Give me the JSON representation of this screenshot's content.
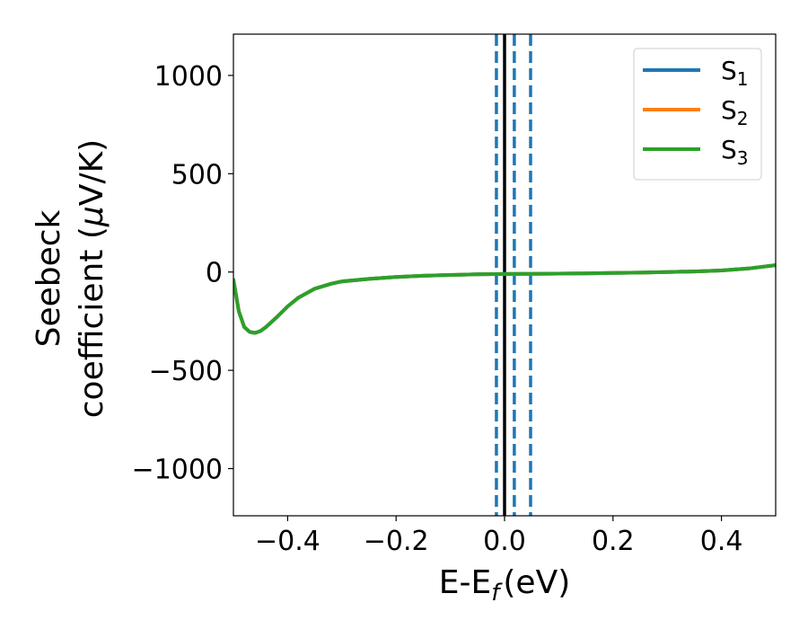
{
  "chart_data": {
    "type": "line",
    "xlabel": "E-E",
    "xlabel_sub": "f",
    "xlabel_unit": "(eV)",
    "ylabel_line1": "Seebeck",
    "ylabel_line2": "coefficient  (",
    "ylabel_mu": "μ",
    "ylabel_unit": "V/K)",
    "xlim": [
      -0.5,
      0.5
    ],
    "ylim": [
      -1240,
      1210
    ],
    "x_ticks": [
      -0.4,
      -0.2,
      0.0,
      0.2,
      0.4
    ],
    "x_tick_labels": [
      "−0.4",
      "−0.2",
      "0.0",
      "0.2",
      "0.4"
    ],
    "y_ticks": [
      -1000,
      -500,
      0,
      500,
      1000
    ],
    "y_tick_labels": [
      "−1000",
      "−500",
      "0",
      "500",
      "1000"
    ],
    "grid": false,
    "legend_position": "top-right",
    "vertical_lines": [
      {
        "x": 0.0,
        "style": "solid",
        "color": "#000000"
      },
      {
        "x": -0.015,
        "style": "dashed",
        "color": "#1f77b4"
      },
      {
        "x": 0.018,
        "style": "dashed",
        "color": "#1f77b4"
      },
      {
        "x": 0.048,
        "style": "dashed",
        "color": "#1f77b4"
      }
    ],
    "x": [
      -0.5,
      -0.49,
      -0.48,
      -0.47,
      -0.46,
      -0.45,
      -0.44,
      -0.42,
      -0.4,
      -0.38,
      -0.35,
      -0.32,
      -0.3,
      -0.25,
      -0.2,
      -0.15,
      -0.1,
      -0.05,
      0.0,
      0.05,
      0.1,
      0.15,
      0.2,
      0.25,
      0.3,
      0.35,
      0.4,
      0.45,
      0.5
    ],
    "series": [
      {
        "name": "S",
        "sub": "1",
        "color": "#1f77b4",
        "values": [
          -40,
          -200,
          -280,
          -305,
          -310,
          -300,
          -280,
          -230,
          -175,
          -130,
          -85,
          -60,
          -48,
          -35,
          -25,
          -19,
          -15,
          -12,
          -10,
          -9,
          -8,
          -7,
          -5,
          -3,
          0,
          3,
          8,
          18,
          35
        ]
      },
      {
        "name": "S",
        "sub": "2",
        "color": "#ff7f0e",
        "values": [
          -40,
          -200,
          -280,
          -305,
          -310,
          -300,
          -280,
          -230,
          -175,
          -130,
          -85,
          -60,
          -48,
          -35,
          -25,
          -19,
          -15,
          -12,
          -10,
          -9,
          -8,
          -7,
          -5,
          -3,
          0,
          3,
          8,
          18,
          35
        ]
      },
      {
        "name": "S",
        "sub": "3",
        "color": "#2ca02c",
        "values": [
          -40,
          -200,
          -280,
          -305,
          -310,
          -300,
          -280,
          -230,
          -175,
          -130,
          -85,
          -60,
          -48,
          -35,
          -25,
          -19,
          -15,
          -12,
          -10,
          -9,
          -8,
          -7,
          -5,
          -3,
          0,
          3,
          8,
          18,
          35
        ]
      }
    ]
  }
}
